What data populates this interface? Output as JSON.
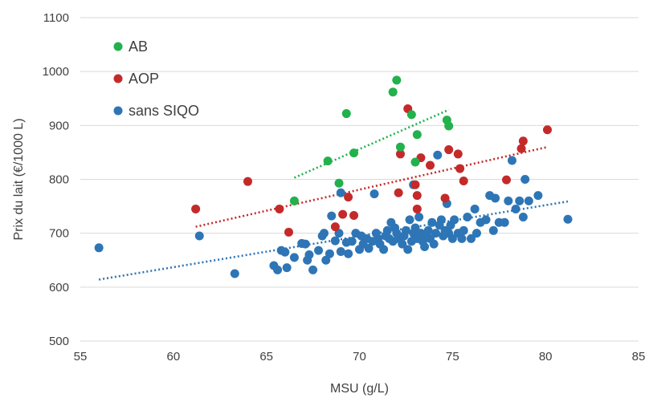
{
  "chart_data": {
    "type": "scatter",
    "title": "",
    "xlabel": "MSU (g/L)",
    "ylabel": "Prix du lait (€/1000 L)",
    "xlim": [
      55,
      85
    ],
    "ylim": [
      500,
      1100
    ],
    "xticks": [
      55,
      60,
      65,
      70,
      75,
      80,
      85
    ],
    "yticks": [
      500,
      600,
      700,
      800,
      900,
      1000,
      1100
    ],
    "grid": "horizontal",
    "legend_position": "top-left",
    "series": [
      {
        "name": "AB",
        "color": "#22b14c",
        "points": [
          [
            66.5,
            760
          ],
          [
            68.3,
            834
          ],
          [
            68.9,
            793
          ],
          [
            69.3,
            922
          ],
          [
            69.7,
            849
          ],
          [
            71.8,
            962
          ],
          [
            72.0,
            984
          ],
          [
            72.2,
            860
          ],
          [
            72.8,
            920
          ],
          [
            73.0,
            832
          ],
          [
            73.1,
            883
          ],
          [
            74.7,
            910
          ],
          [
            74.8,
            899
          ]
        ],
        "trendline": [
          [
            66.5,
            803
          ],
          [
            74.8,
            929
          ]
        ]
      },
      {
        "name": "AOP",
        "color": "#c42a2a",
        "points": [
          [
            61.2,
            745
          ],
          [
            64.0,
            796
          ],
          [
            65.7,
            745
          ],
          [
            66.2,
            702
          ],
          [
            68.7,
            712
          ],
          [
            69.1,
            735
          ],
          [
            69.4,
            767
          ],
          [
            69.7,
            733
          ],
          [
            72.2,
            847
          ],
          [
            72.1,
            775
          ],
          [
            72.6,
            931
          ],
          [
            73.1,
            770
          ],
          [
            73.1,
            745
          ],
          [
            73.3,
            840
          ],
          [
            73.8,
            826
          ],
          [
            74.6,
            765
          ],
          [
            74.8,
            855
          ],
          [
            75.3,
            847
          ],
          [
            75.4,
            820
          ],
          [
            75.6,
            797
          ],
          [
            77.9,
            799
          ],
          [
            78.7,
            857
          ],
          [
            78.8,
            871
          ],
          [
            80.1,
            892
          ],
          [
            73.0,
            790
          ]
        ],
        "trendline": [
          [
            61.2,
            712
          ],
          [
            80.1,
            860
          ]
        ]
      },
      {
        "name": "sans SIQO",
        "color": "#2e75b6",
        "points": [
          [
            56.0,
            673
          ],
          [
            61.4,
            695
          ],
          [
            63.3,
            625
          ],
          [
            65.4,
            640
          ],
          [
            65.6,
            632
          ],
          [
            65.8,
            668
          ],
          [
            66.0,
            665
          ],
          [
            66.1,
            636
          ],
          [
            66.5,
            655
          ],
          [
            66.9,
            681
          ],
          [
            67.1,
            680
          ],
          [
            67.2,
            650
          ],
          [
            67.3,
            660
          ],
          [
            67.5,
            632
          ],
          [
            67.8,
            668
          ],
          [
            68.0,
            695
          ],
          [
            68.1,
            700
          ],
          [
            68.2,
            650
          ],
          [
            68.4,
            662
          ],
          [
            68.5,
            732
          ],
          [
            68.7,
            686
          ],
          [
            68.9,
            700
          ],
          [
            69.0,
            666
          ],
          [
            69.0,
            775
          ],
          [
            69.3,
            683
          ],
          [
            69.4,
            662
          ],
          [
            69.6,
            685
          ],
          [
            69.8,
            700
          ],
          [
            70.0,
            670
          ],
          [
            70.1,
            695
          ],
          [
            70.2,
            680
          ],
          [
            70.4,
            690
          ],
          [
            70.5,
            672
          ],
          [
            70.7,
            685
          ],
          [
            70.8,
            773
          ],
          [
            70.9,
            700
          ],
          [
            71.0,
            690
          ],
          [
            71.1,
            680
          ],
          [
            71.3,
            670
          ],
          [
            71.4,
            695
          ],
          [
            71.5,
            705
          ],
          [
            71.6,
            690
          ],
          [
            71.7,
            720
          ],
          [
            71.8,
            685
          ],
          [
            71.9,
            710
          ],
          [
            72.0,
            700
          ],
          [
            72.1,
            690
          ],
          [
            72.3,
            680
          ],
          [
            72.4,
            695
          ],
          [
            72.5,
            705
          ],
          [
            72.6,
            670
          ],
          [
            72.7,
            725
          ],
          [
            72.8,
            685
          ],
          [
            72.9,
            700
          ],
          [
            73.0,
            710
          ],
          [
            73.1,
            690
          ],
          [
            73.2,
            730
          ],
          [
            73.3,
            700
          ],
          [
            73.4,
            685
          ],
          [
            73.5,
            675
          ],
          [
            73.6,
            695
          ],
          [
            73.7,
            705
          ],
          [
            73.8,
            690
          ],
          [
            73.9,
            720
          ],
          [
            74.0,
            680
          ],
          [
            74.1,
            700
          ],
          [
            74.2,
            845
          ],
          [
            74.3,
            715
          ],
          [
            74.4,
            725
          ],
          [
            74.5,
            695
          ],
          [
            74.6,
            705
          ],
          [
            74.7,
            755
          ],
          [
            74.8,
            700
          ],
          [
            74.9,
            715
          ],
          [
            75.0,
            690
          ],
          [
            75.1,
            725
          ],
          [
            75.3,
            700
          ],
          [
            75.5,
            690
          ],
          [
            75.6,
            705
          ],
          [
            75.8,
            730
          ],
          [
            76.0,
            690
          ],
          [
            76.2,
            745
          ],
          [
            76.3,
            700
          ],
          [
            76.5,
            720
          ],
          [
            76.8,
            725
          ],
          [
            77.0,
            770
          ],
          [
            77.2,
            705
          ],
          [
            77.3,
            765
          ],
          [
            77.5,
            720
          ],
          [
            77.8,
            720
          ],
          [
            78.0,
            760
          ],
          [
            78.2,
            835
          ],
          [
            78.4,
            745
          ],
          [
            78.6,
            760
          ],
          [
            78.8,
            730
          ],
          [
            78.9,
            800
          ],
          [
            79.1,
            760
          ],
          [
            79.6,
            770
          ],
          [
            81.2,
            726
          ],
          [
            72.9,
            790
          ]
        ],
        "trendline": [
          [
            56.0,
            614
          ],
          [
            81.2,
            759
          ]
        ]
      }
    ]
  }
}
